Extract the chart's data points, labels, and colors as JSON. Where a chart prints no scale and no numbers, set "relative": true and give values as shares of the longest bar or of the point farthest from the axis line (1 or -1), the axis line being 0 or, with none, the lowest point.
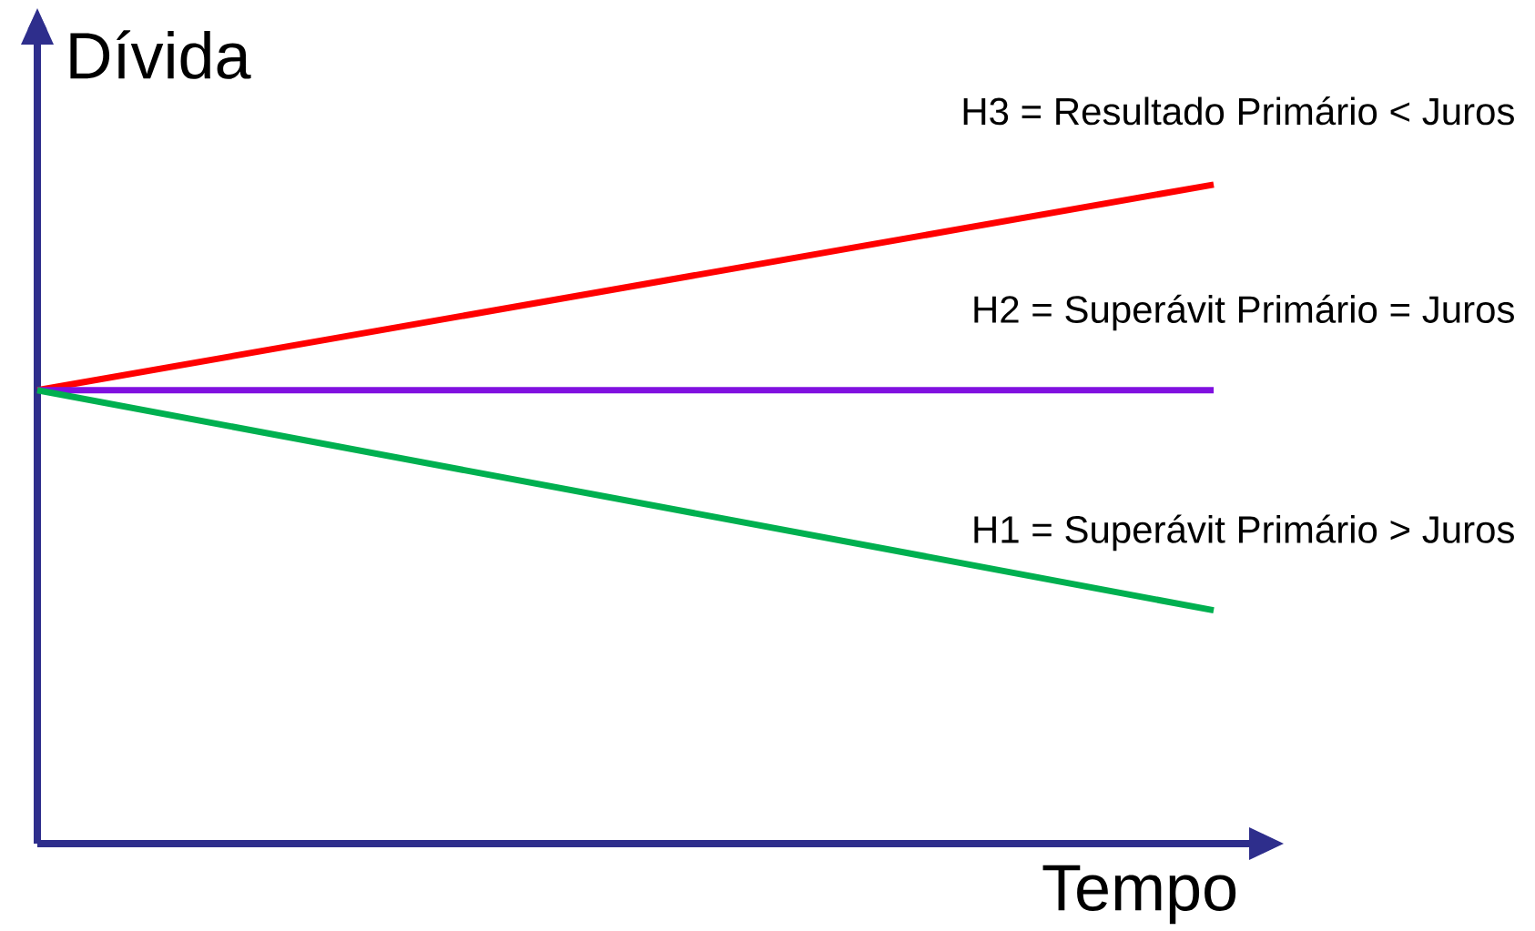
{
  "chart_data": {
    "type": "line",
    "relative": true,
    "xlabel": "Tempo",
    "ylabel": "Dívida",
    "categories": [
      null,
      null
    ],
    "series": [
      {
        "name": "H3 = Resultado Primário < Juros",
        "color": "#ff0000",
        "values": [
          0.688,
          1
        ]
      },
      {
        "name": "H2 = Superávit Primário = Juros",
        "color": "#8010e0",
        "values": [
          0.688,
          0.688
        ]
      },
      {
        "name": "H1 = Superávit Primário > Juros",
        "color": "#00b050",
        "values": [
          0.688,
          0.354
        ]
      }
    ],
    "legend": false,
    "marker": "none",
    "line_style": "solid"
  }
}
